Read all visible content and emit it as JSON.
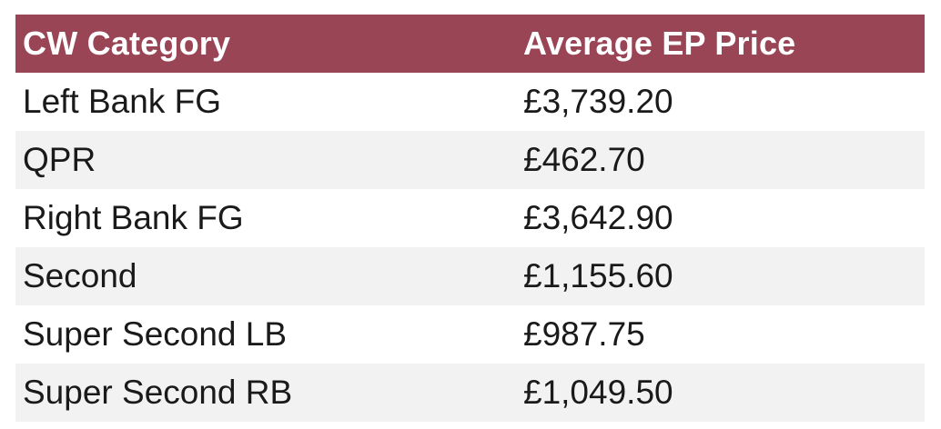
{
  "table": {
    "headers": [
      "CW Category",
      "Average EP Price"
    ],
    "rows": [
      [
        "Left Bank FG",
        "£3,739.20"
      ],
      [
        "QPR",
        "£462.70"
      ],
      [
        "Right Bank FG",
        "£3,642.90"
      ],
      [
        "Second",
        "£1,155.60"
      ],
      [
        "Super Second LB",
        "£987.75"
      ],
      [
        "Super Second RB",
        "£1,049.50"
      ]
    ]
  },
  "colors": {
    "header_background": "#9a4555",
    "header_text": "#ffffff",
    "row_alt_background": "#f2f2f2"
  }
}
